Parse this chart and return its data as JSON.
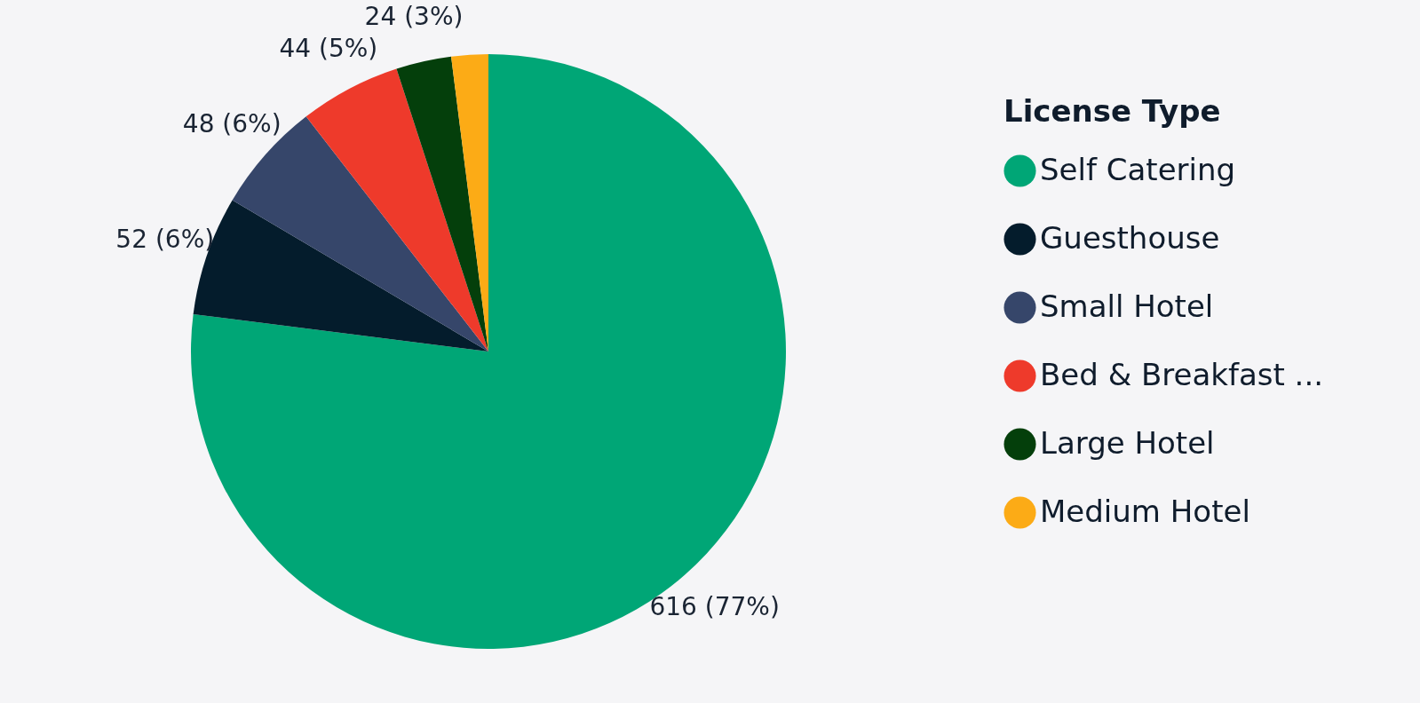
{
  "chart_data": {
    "type": "pie",
    "legend_title": "License Type",
    "legend": "right",
    "categories": [
      "Self Catering",
      "Guesthouse",
      "Small Hotel",
      "Bed & Breakfast ...",
      "Large Hotel",
      "Medium Hotel"
    ],
    "values": [
      616,
      52,
      48,
      44,
      24,
      16
    ],
    "colors": [
      "#00a676",
      "#041c2c",
      "#36466a",
      "#ee3a2b",
      "#043f0b",
      "#fcab16"
    ],
    "value_labels": [
      "616 (77%)",
      "52 (6%)",
      "48 (6%)",
      "44 (5%)",
      "24 (3%)",
      null
    ]
  }
}
